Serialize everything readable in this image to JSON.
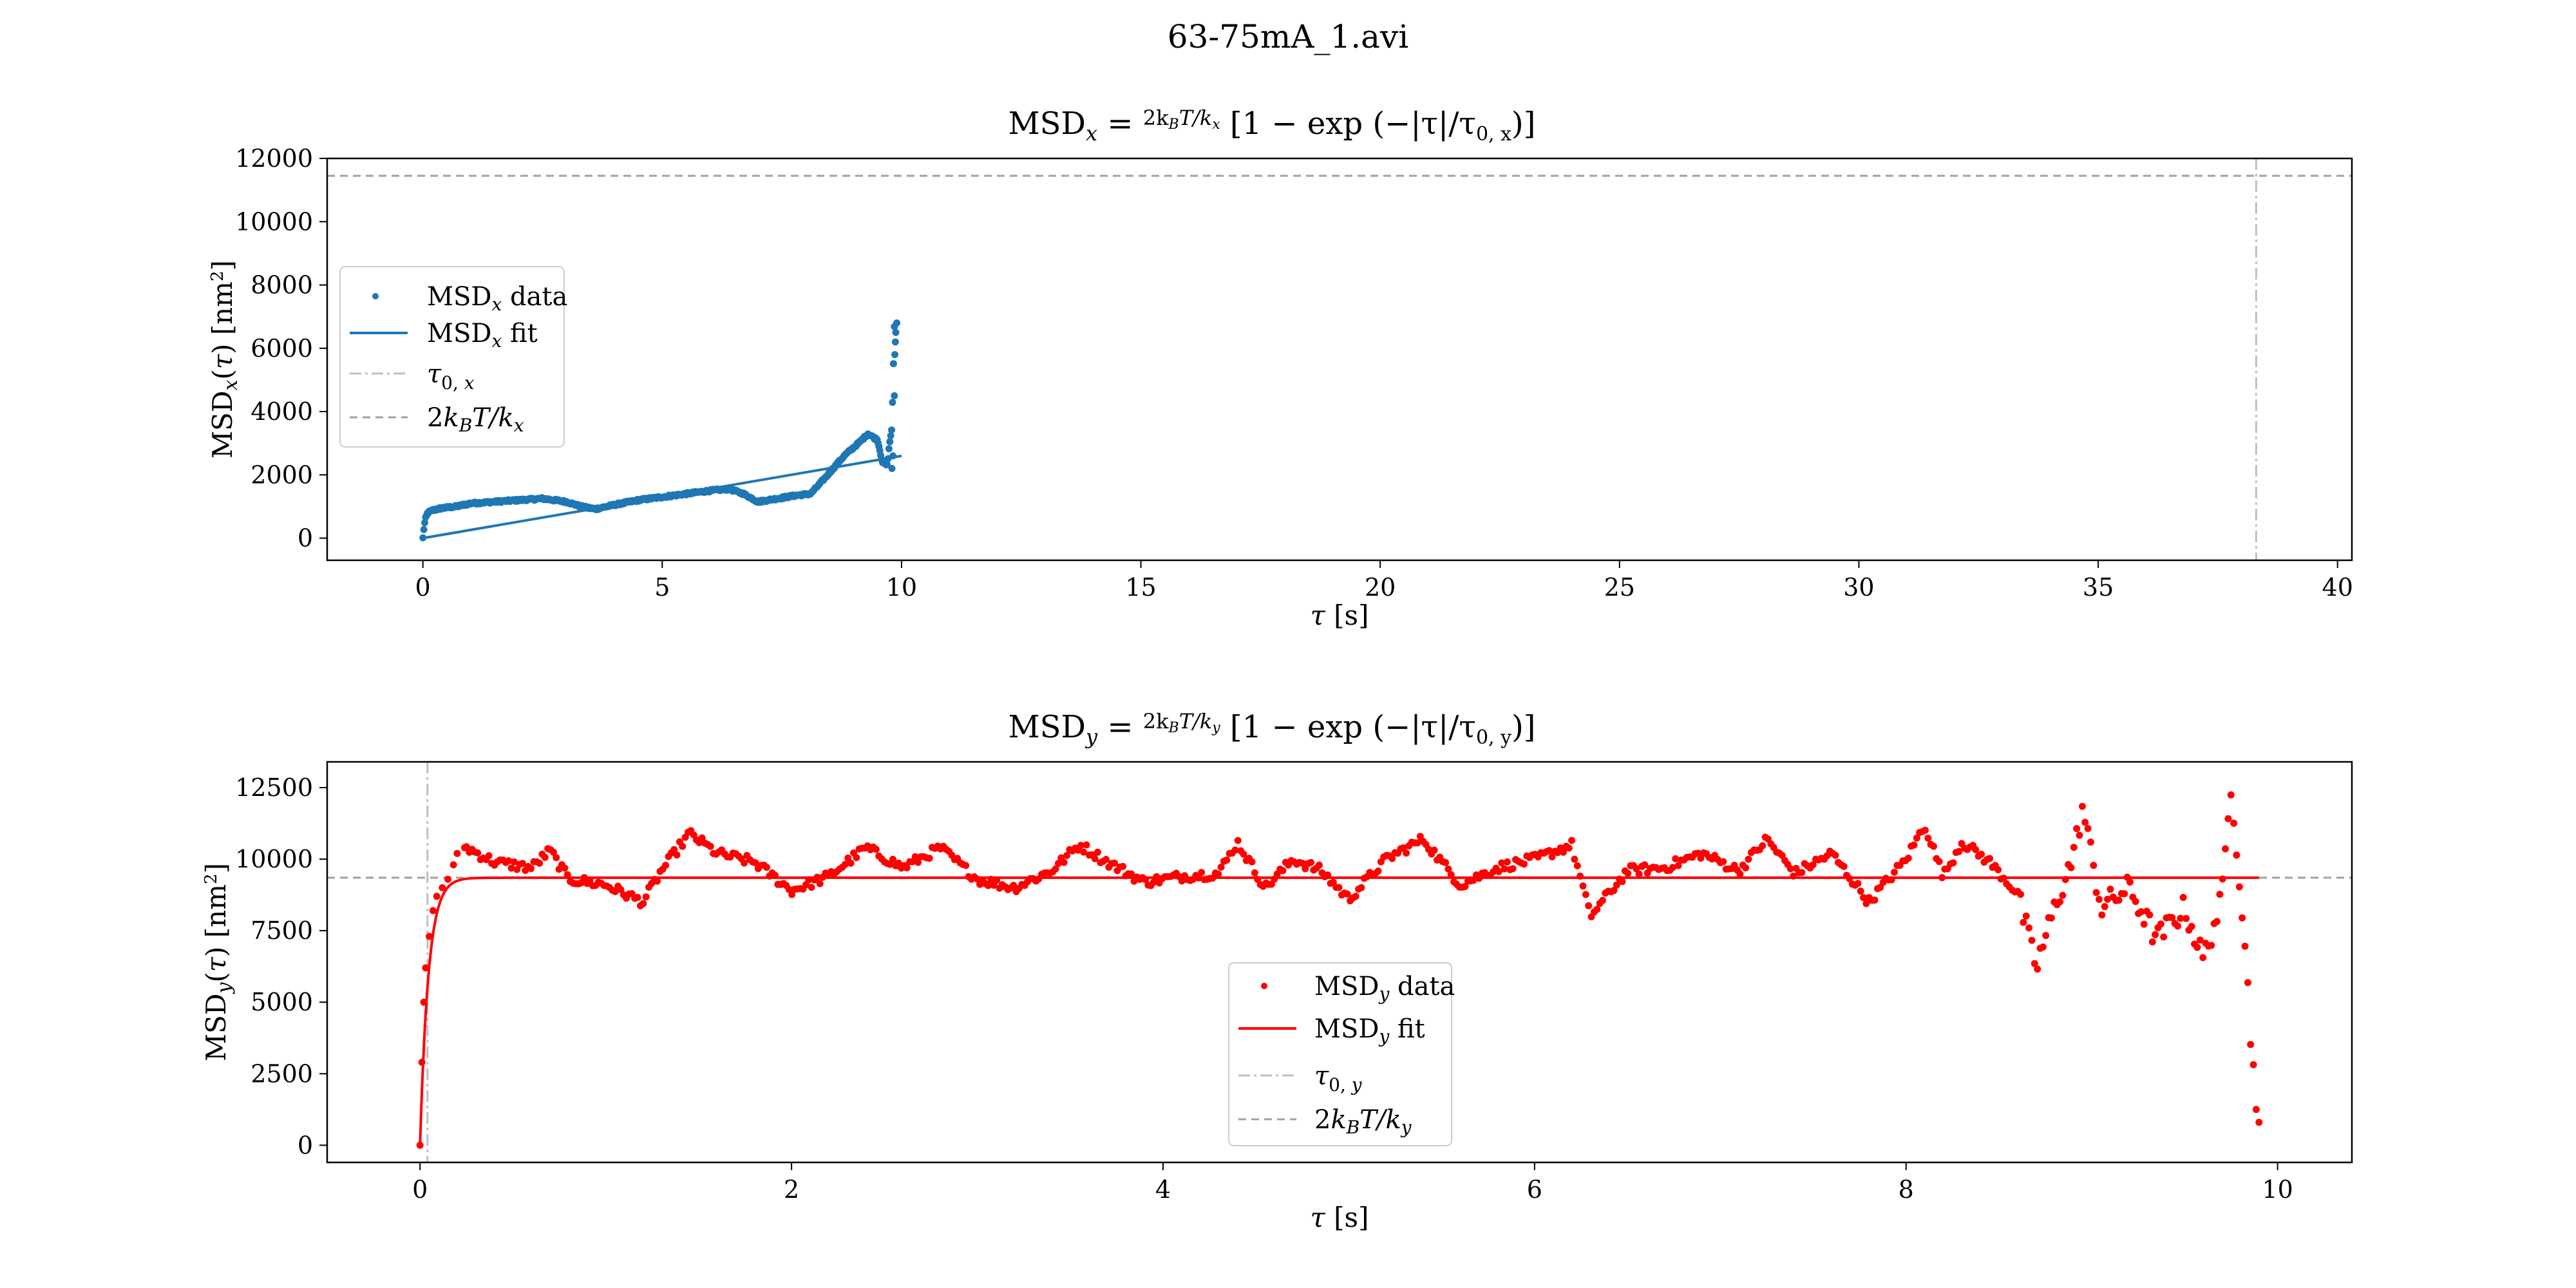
{
  "figure": {
    "title": "63-75mA_1.avi"
  },
  "chart_data": [
    {
      "type": "scatter",
      "title": "MSD_x = (2k_B T / k_x)[1 − exp(−|τ|/τ_{0,x})]",
      "xlabel": "τ [s]",
      "ylabel": "MSD_x(τ) [nm²]",
      "xlim": [
        -2,
        40.3
      ],
      "ylim": [
        -700,
        12000
      ],
      "xticks": [
        0,
        5,
        10,
        15,
        20,
        25,
        30,
        35,
        40
      ],
      "yticks": [
        0,
        2000,
        4000,
        6000,
        8000,
        10000,
        12000
      ],
      "grid": false,
      "legend_position": "center-left",
      "colors": {
        "data": "#1f77b4",
        "fit": "#1f77b4",
        "tau0": "#bfbfbf",
        "plateau": "#a0a0a0"
      },
      "legend": [
        {
          "key": "data",
          "label": "MSD_x data",
          "style": "dot"
        },
        {
          "key": "fit",
          "label": "MSD_x fit",
          "style": "solid"
        },
        {
          "key": "tau0",
          "label": "τ_{0,x}",
          "style": "dashdot"
        },
        {
          "key": "plateau",
          "label": "2k_B T/k_x",
          "style": "dashed"
        }
      ],
      "plateau": 11450,
      "tau0": 38.3,
      "fit_line": [
        [
          0,
          0
        ],
        [
          10,
          2600
        ]
      ],
      "data_anchors": [
        [
          0,
          0
        ],
        [
          0.02,
          300
        ],
        [
          0.05,
          600
        ],
        [
          0.1,
          800
        ],
        [
          0.2,
          880
        ],
        [
          0.4,
          950
        ],
        [
          0.7,
          1000
        ],
        [
          1.0,
          1100
        ],
        [
          1.5,
          1150
        ],
        [
          2.0,
          1200
        ],
        [
          2.5,
          1250
        ],
        [
          3.0,
          1150
        ],
        [
          3.3,
          1000
        ],
        [
          3.6,
          920
        ],
        [
          4.0,
          1050
        ],
        [
          4.5,
          1200
        ],
        [
          5.0,
          1300
        ],
        [
          5.5,
          1400
        ],
        [
          6.0,
          1500
        ],
        [
          6.4,
          1550
        ],
        [
          6.7,
          1400
        ],
        [
          7.0,
          1150
        ],
        [
          7.4,
          1250
        ],
        [
          7.8,
          1350
        ],
        [
          8.1,
          1400
        ],
        [
          8.4,
          1900
        ],
        [
          8.8,
          2600
        ],
        [
          9.1,
          3000
        ],
        [
          9.3,
          3300
        ],
        [
          9.5,
          3100
        ],
        [
          9.6,
          2400
        ],
        [
          9.7,
          2300
        ],
        [
          9.75,
          3000
        ],
        [
          9.8,
          3500
        ],
        [
          9.85,
          6700
        ]
      ],
      "data_extra": [
        [
          9.8,
          2200
        ],
        [
          9.82,
          2600
        ],
        [
          9.85,
          4500
        ],
        [
          9.86,
          5800
        ],
        [
          9.87,
          6200
        ],
        [
          9.88,
          6500
        ],
        [
          9.9,
          6800
        ]
      ]
    },
    {
      "type": "scatter",
      "title": "MSD_y = (2k_B T / k_y)[1 − exp(−|τ|/τ_{0,y})]",
      "xlabel": "τ [s]",
      "ylabel": "MSD_y(τ) [nm²]",
      "xlim": [
        -0.5,
        10.4
      ],
      "ylim": [
        -600,
        13400
      ],
      "xticks": [
        0,
        2,
        4,
        6,
        8,
        10
      ],
      "yticks": [
        0,
        2500,
        5000,
        7500,
        10000,
        12500
      ],
      "grid": false,
      "legend_position": "lower-center",
      "colors": {
        "data": "#ff0000",
        "fit": "#ff0000",
        "tau0": "#bfbfbf",
        "plateau": "#a0a0a0"
      },
      "legend": [
        {
          "key": "data",
          "label": "MSD_y data",
          "style": "dot"
        },
        {
          "key": "fit",
          "label": "MSD_y fit",
          "style": "solid"
        },
        {
          "key": "tau0",
          "label": "τ_{0,y}",
          "style": "dashdot"
        },
        {
          "key": "plateau",
          "label": "2k_B T/k_y",
          "style": "dashed"
        }
      ],
      "plateau": 9350,
      "tau0": 0.04,
      "data_head": [
        [
          0,
          0
        ],
        [
          0.01,
          2900
        ],
        [
          0.02,
          5000
        ],
        [
          0.03,
          6200
        ],
        [
          0.05,
          7300
        ],
        [
          0.07,
          8200
        ],
        [
          0.09,
          8700
        ],
        [
          0.12,
          9000
        ],
        [
          0.15,
          9300
        ],
        [
          0.18,
          9800
        ],
        [
          0.2,
          10200
        ],
        [
          0.24,
          10400
        ]
      ],
      "data_anchors": [
        [
          0.25,
          10400
        ],
        [
          0.4,
          9900
        ],
        [
          0.6,
          9700
        ],
        [
          0.7,
          10300
        ],
        [
          0.8,
          9300
        ],
        [
          1.0,
          9100
        ],
        [
          1.2,
          8500
        ],
        [
          1.3,
          9600
        ],
        [
          1.45,
          10900
        ],
        [
          1.6,
          10200
        ],
        [
          1.8,
          9900
        ],
        [
          2.0,
          8900
        ],
        [
          2.2,
          9400
        ],
        [
          2.4,
          10400
        ],
        [
          2.6,
          9700
        ],
        [
          2.8,
          10400
        ],
        [
          3.0,
          9300
        ],
        [
          3.2,
          9000
        ],
        [
          3.4,
          9600
        ],
        [
          3.55,
          10500
        ],
        [
          3.7,
          9900
        ],
        [
          3.9,
          9200
        ],
        [
          4.1,
          9400
        ],
        [
          4.3,
          9500
        ],
        [
          4.4,
          10600
        ],
        [
          4.55,
          9000
        ],
        [
          4.7,
          10000
        ],
        [
          4.85,
          9600
        ],
        [
          5.0,
          8600
        ],
        [
          5.2,
          10000
        ],
        [
          5.4,
          10700
        ],
        [
          5.6,
          9100
        ],
        [
          5.8,
          9700
        ],
        [
          6.0,
          10000
        ],
        [
          6.2,
          10500
        ],
        [
          6.3,
          8000
        ],
        [
          6.5,
          9600
        ],
        [
          6.7,
          9700
        ],
        [
          6.9,
          10200
        ],
        [
          7.1,
          9600
        ],
        [
          7.25,
          10700
        ],
        [
          7.4,
          9500
        ],
        [
          7.6,
          10200
        ],
        [
          7.8,
          8500
        ],
        [
          8.0,
          10000
        ],
        [
          8.1,
          11200
        ],
        [
          8.2,
          9400
        ],
        [
          8.3,
          10600
        ],
        [
          8.45,
          9900
        ],
        [
          8.6,
          8800
        ],
        [
          8.7,
          6200
        ],
        [
          8.8,
          8300
        ],
        [
          8.9,
          10100
        ],
        [
          8.95,
          11800
        ],
        [
          9.05,
          8300
        ],
        [
          9.2,
          9000
        ],
        [
          9.35,
          7200
        ],
        [
          9.5,
          8300
        ],
        [
          9.6,
          6500
        ],
        [
          9.7,
          8600
        ],
        [
          9.75,
          12700
        ],
        [
          9.82,
          7500
        ],
        [
          9.86,
          3300
        ],
        [
          9.9,
          700
        ]
      ],
      "fit_line_note": "fit follows plateau*(1-exp(-t/tau0)) up to 9.9 s"
    }
  ]
}
